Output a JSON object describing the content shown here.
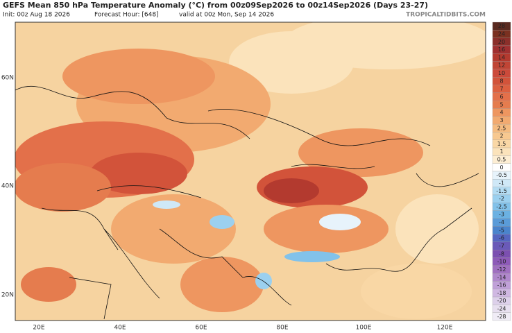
{
  "header": {
    "title": "GEFS Mean 850 hPa Temperature Anomaly (°C) from 00z09Sep2026 to 00z14Sep2026 (Days 23-27)",
    "init": "Init: 00z Aug 18 2026",
    "forecast_hour": "Forecast Hour: [648]",
    "valid": "valid at 00z Mon, Sep 14 2026",
    "site": "TROPICALTIDBITS.COM"
  },
  "map": {
    "lat_labels": [
      "60N",
      "40N",
      "20N"
    ],
    "lon_labels": [
      "20E",
      "40E",
      "60E",
      "80E",
      "100E",
      "120E"
    ]
  },
  "colorbar": {
    "labels": [
      28,
      24,
      20,
      16,
      14,
      12,
      10,
      8,
      7,
      6,
      5,
      4,
      3,
      2.5,
      2,
      1.5,
      1,
      0.5,
      0,
      -0.5,
      -1,
      -1.5,
      -2,
      -2.5,
      -3,
      -4,
      -5,
      -6,
      -7,
      -8,
      -10,
      -12,
      -14,
      -16,
      -18,
      -20,
      -24,
      -28
    ],
    "colors": [
      "#5a2a20",
      "#7a3020",
      "#8b2f2a",
      "#a03030",
      "#b33a2f",
      "#c04535",
      "#cc4a3a",
      "#d2533a",
      "#dc6040",
      "#e3704a",
      "#e57c4e",
      "#ee9660",
      "#f2aa70",
      "#f5bb80",
      "#f7c890",
      "#f9d7a5",
      "#fbe3bb",
      "#fdeed3",
      "#ffffff",
      "#e7f3fb",
      "#cfe8f7",
      "#b3dcf3",
      "#9bd0ef",
      "#82c2ea",
      "#6bb1e2",
      "#5a9bd8",
      "#4a84cc",
      "#5566c0",
      "#6a5ab8",
      "#7c4fb0",
      "#8e5ab8",
      "#a070c0",
      "#b088cc",
      "#c0a0d8",
      "#d0b8e2",
      "#ddd0ea",
      "#e8e0f0",
      "#f0ecf6"
    ]
  }
}
